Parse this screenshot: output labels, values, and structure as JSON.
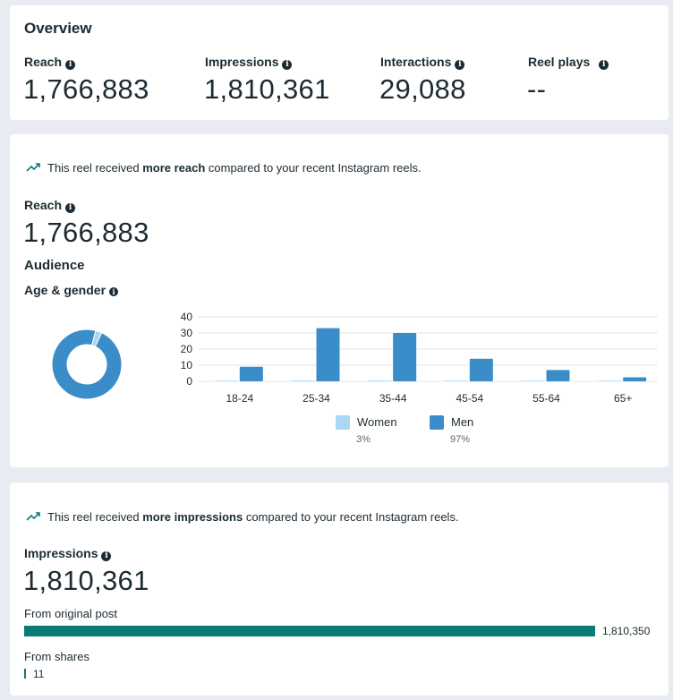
{
  "overview": {
    "title": "Overview",
    "metrics": [
      {
        "label": "Reach",
        "value": "1,766,883"
      },
      {
        "label": "Impressions",
        "value": "1,810,361"
      },
      {
        "label": "Interactions",
        "value": "29,088"
      },
      {
        "label": "Reel plays",
        "value": "--"
      }
    ]
  },
  "reach_section": {
    "trend_prefix": "This reel received ",
    "trend_bold": "more reach",
    "trend_suffix": " compared to your recent Instagram reels.",
    "label": "Reach",
    "value": "1,766,883",
    "audience_title": "Audience",
    "age_gender_label": "Age & gender",
    "legend": [
      {
        "label": "Women",
        "pct": "3%",
        "color": "#a8d8f5"
      },
      {
        "label": "Men",
        "pct": "97%",
        "color": "#3a8dc9"
      }
    ]
  },
  "impressions_section": {
    "trend_prefix": "This reel received ",
    "trend_bold": "more impressions",
    "trend_suffix": " compared to your recent Instagram reels.",
    "label": "Impressions",
    "value": "1,810,361",
    "from_original_label": "From original post",
    "from_original_value": "1,810,350",
    "from_original_fraction": 0.99999,
    "from_shares_label": "From shares",
    "from_shares_value": "11",
    "bar_color": "#0b7b78"
  },
  "colors": {
    "women": "#a8d8f5",
    "men": "#3a8dc9",
    "trend": "#0b7b78"
  },
  "chart_data": [
    {
      "type": "pie",
      "labels": [
        "Women",
        "Men"
      ],
      "values": [
        3,
        97
      ]
    },
    {
      "type": "bar",
      "categories": [
        "18-24",
        "25-34",
        "35-44",
        "45-54",
        "55-64",
        "65+"
      ],
      "series": [
        {
          "name": "Women",
          "values": [
            0.1,
            0.5,
            0.5,
            0.2,
            0.1,
            0.1
          ]
        },
        {
          "name": "Men",
          "values": [
            9,
            33,
            30,
            14,
            7,
            2.5
          ]
        }
      ],
      "yticks": [
        "40",
        "30",
        "20",
        "10",
        "0"
      ],
      "ylim": [
        0,
        40
      ],
      "grid": true,
      "legend_position": "bottom"
    }
  ]
}
